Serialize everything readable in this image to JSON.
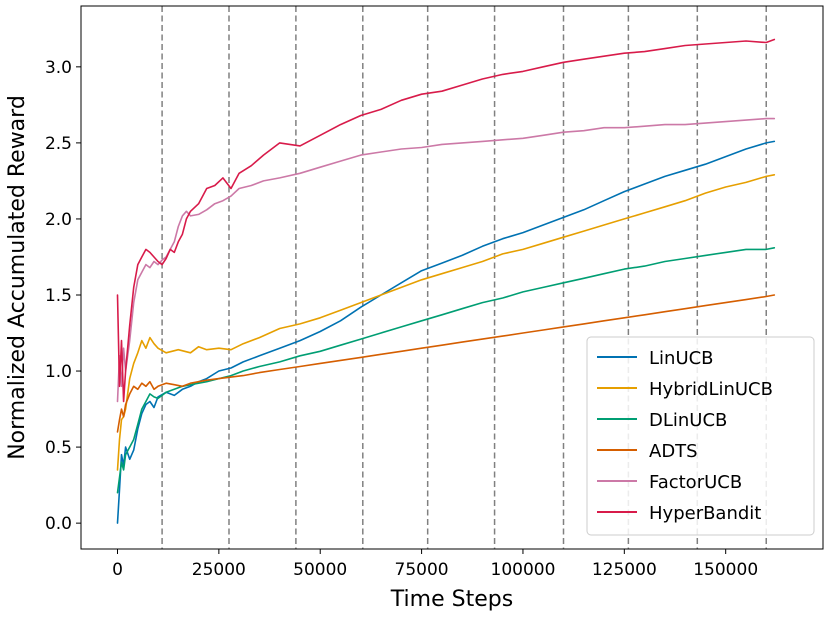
{
  "chart_data": {
    "type": "line",
    "title": "",
    "xlabel": "Time Steps",
    "ylabel": "Normalized Accumulated Reward",
    "xlim": [
      -9000,
      174000
    ],
    "ylim": [
      -0.17,
      3.4
    ],
    "xticks": [
      0,
      25000,
      50000,
      75000,
      100000,
      125000,
      150000
    ],
    "xtick_labels": [
      "0",
      "25000",
      "50000",
      "75000",
      "100000",
      "125000",
      "150000"
    ],
    "yticks": [
      0.0,
      0.5,
      1.0,
      1.5,
      2.0,
      2.5,
      3.0
    ],
    "ytick_labels": [
      "0.0",
      "0.5",
      "1.0",
      "1.5",
      "2.0",
      "2.5",
      "3.0"
    ],
    "vlines": [
      11000,
      27500,
      44000,
      60500,
      76500,
      93000,
      110000,
      126000,
      143000,
      160000
    ],
    "grid": false,
    "legend_position": "lower right",
    "series": [
      {
        "name": "LinUCB",
        "color": "#0072b2",
        "x": [
          0,
          500,
          1000,
          1500,
          2000,
          3000,
          4000,
          5000,
          6000,
          7000,
          8000,
          9000,
          10000,
          12000,
          14000,
          16000,
          18000,
          20000,
          22000,
          25000,
          28000,
          31000,
          35000,
          40000,
          45000,
          50000,
          55000,
          60000,
          65000,
          70000,
          75000,
          80000,
          85000,
          90000,
          95000,
          100000,
          105000,
          110000,
          115000,
          120000,
          125000,
          130000,
          135000,
          140000,
          145000,
          150000,
          155000,
          160000,
          162000
        ],
        "y": [
          0.0,
          0.22,
          0.45,
          0.38,
          0.5,
          0.42,
          0.48,
          0.62,
          0.72,
          0.78,
          0.8,
          0.76,
          0.83,
          0.86,
          0.84,
          0.88,
          0.9,
          0.93,
          0.95,
          1.0,
          1.02,
          1.06,
          1.1,
          1.15,
          1.2,
          1.26,
          1.33,
          1.42,
          1.5,
          1.58,
          1.66,
          1.71,
          1.76,
          1.82,
          1.87,
          1.91,
          1.96,
          2.01,
          2.06,
          2.12,
          2.18,
          2.23,
          2.28,
          2.32,
          2.36,
          2.41,
          2.46,
          2.5,
          2.51
        ]
      },
      {
        "name": "HybridLinUCB",
        "color": "#e69f00",
        "x": [
          0,
          500,
          1000,
          1500,
          2000,
          3000,
          4000,
          5000,
          6000,
          7000,
          8000,
          9000,
          10000,
          12000,
          15000,
          18000,
          20000,
          22000,
          25000,
          28000,
          31000,
          35000,
          40000,
          45000,
          50000,
          55000,
          60000,
          65000,
          70000,
          75000,
          80000,
          85000,
          90000,
          95000,
          100000,
          105000,
          110000,
          115000,
          120000,
          125000,
          130000,
          135000,
          140000,
          145000,
          150000,
          155000,
          160000,
          162000
        ],
        "y": [
          0.35,
          0.55,
          0.68,
          0.7,
          0.75,
          0.95,
          1.05,
          1.12,
          1.2,
          1.15,
          1.22,
          1.18,
          1.15,
          1.12,
          1.14,
          1.12,
          1.16,
          1.14,
          1.15,
          1.14,
          1.18,
          1.22,
          1.28,
          1.31,
          1.35,
          1.4,
          1.45,
          1.5,
          1.55,
          1.6,
          1.64,
          1.68,
          1.72,
          1.77,
          1.8,
          1.84,
          1.88,
          1.92,
          1.96,
          2.0,
          2.04,
          2.08,
          2.12,
          2.17,
          2.21,
          2.24,
          2.28,
          2.29
        ]
      },
      {
        "name": "DLinUCB",
        "color": "#009e73",
        "x": [
          0,
          500,
          1000,
          1500,
          2000,
          3000,
          4000,
          5000,
          6000,
          7000,
          8000,
          9000,
          10000,
          12000,
          14000,
          16000,
          18000,
          20000,
          22000,
          25000,
          28000,
          31000,
          35000,
          40000,
          45000,
          50000,
          55000,
          60000,
          65000,
          70000,
          75000,
          80000,
          85000,
          90000,
          95000,
          100000,
          105000,
          110000,
          115000,
          120000,
          125000,
          130000,
          135000,
          140000,
          145000,
          150000,
          155000,
          160000,
          162000
        ],
        "y": [
          0.2,
          0.3,
          0.4,
          0.35,
          0.45,
          0.5,
          0.55,
          0.65,
          0.75,
          0.8,
          0.85,
          0.83,
          0.82,
          0.86,
          0.88,
          0.9,
          0.91,
          0.92,
          0.93,
          0.95,
          0.97,
          1.0,
          1.03,
          1.06,
          1.1,
          1.13,
          1.17,
          1.21,
          1.25,
          1.29,
          1.33,
          1.37,
          1.41,
          1.45,
          1.48,
          1.52,
          1.55,
          1.58,
          1.61,
          1.64,
          1.67,
          1.69,
          1.72,
          1.74,
          1.76,
          1.78,
          1.8,
          1.8,
          1.81
        ]
      },
      {
        "name": "ADTS",
        "color": "#d55e00",
        "x": [
          0,
          500,
          1000,
          1500,
          2000,
          3000,
          4000,
          5000,
          6000,
          7000,
          8000,
          9000,
          10000,
          12000,
          14000,
          16000,
          18000,
          20000,
          22000,
          25000,
          28000,
          31000,
          35000,
          40000,
          45000,
          50000,
          55000,
          60000,
          65000,
          70000,
          75000,
          80000,
          85000,
          90000,
          95000,
          100000,
          105000,
          110000,
          115000,
          120000,
          125000,
          130000,
          135000,
          140000,
          145000,
          150000,
          155000,
          160000,
          162000
        ],
        "y": [
          0.6,
          0.68,
          0.75,
          0.7,
          0.78,
          0.85,
          0.9,
          0.88,
          0.92,
          0.9,
          0.93,
          0.88,
          0.9,
          0.92,
          0.91,
          0.9,
          0.92,
          0.93,
          0.94,
          0.95,
          0.96,
          0.97,
          0.99,
          1.01,
          1.03,
          1.05,
          1.07,
          1.09,
          1.11,
          1.13,
          1.15,
          1.17,
          1.19,
          1.21,
          1.23,
          1.25,
          1.27,
          1.29,
          1.31,
          1.33,
          1.35,
          1.37,
          1.39,
          1.41,
          1.43,
          1.45,
          1.47,
          1.49,
          1.5
        ]
      },
      {
        "name": "FactorUCB",
        "color": "#cc79a7",
        "x": [
          0,
          500,
          1000,
          1500,
          2000,
          3000,
          4000,
          5000,
          6000,
          7000,
          8000,
          9000,
          10000,
          11000,
          12000,
          13000,
          14000,
          15000,
          16000,
          17000,
          18000,
          20000,
          22000,
          24000,
          26000,
          28000,
          30000,
          33000,
          36000,
          40000,
          45000,
          50000,
          55000,
          60000,
          65000,
          70000,
          75000,
          80000,
          85000,
          90000,
          95000,
          100000,
          105000,
          110000,
          115000,
          120000,
          125000,
          130000,
          135000,
          140000,
          145000,
          150000,
          155000,
          160000,
          162000
        ],
        "y": [
          0.8,
          1.1,
          0.9,
          1.15,
          1.0,
          1.2,
          1.45,
          1.6,
          1.65,
          1.7,
          1.68,
          1.72,
          1.7,
          1.73,
          1.75,
          1.8,
          1.85,
          1.95,
          2.02,
          2.05,
          2.02,
          2.03,
          2.06,
          2.1,
          2.12,
          2.15,
          2.2,
          2.22,
          2.25,
          2.27,
          2.3,
          2.34,
          2.38,
          2.42,
          2.44,
          2.46,
          2.47,
          2.49,
          2.5,
          2.51,
          2.52,
          2.53,
          2.55,
          2.57,
          2.58,
          2.6,
          2.6,
          2.61,
          2.62,
          2.62,
          2.63,
          2.64,
          2.65,
          2.66,
          2.66
        ]
      },
      {
        "name": "HyperBandit",
        "color": "#d81b4a",
        "x": [
          0,
          500,
          1000,
          1500,
          2000,
          3000,
          4000,
          5000,
          6000,
          7000,
          8000,
          9000,
          10000,
          11000,
          12000,
          13000,
          14000,
          15000,
          16000,
          17000,
          18000,
          20000,
          22000,
          24000,
          26000,
          28000,
          30000,
          33000,
          36000,
          40000,
          45000,
          50000,
          55000,
          60000,
          65000,
          70000,
          75000,
          80000,
          85000,
          90000,
          95000,
          100000,
          105000,
          110000,
          115000,
          120000,
          125000,
          130000,
          135000,
          140000,
          145000,
          150000,
          155000,
          160000,
          162000
        ],
        "y": [
          1.5,
          0.9,
          1.2,
          0.8,
          1.0,
          1.3,
          1.55,
          1.7,
          1.75,
          1.8,
          1.78,
          1.75,
          1.72,
          1.7,
          1.74,
          1.8,
          1.78,
          1.85,
          1.9,
          2.0,
          2.05,
          2.1,
          2.2,
          2.22,
          2.27,
          2.2,
          2.3,
          2.35,
          2.42,
          2.5,
          2.48,
          2.55,
          2.62,
          2.68,
          2.72,
          2.78,
          2.82,
          2.84,
          2.88,
          2.92,
          2.95,
          2.97,
          3.0,
          3.03,
          3.05,
          3.07,
          3.09,
          3.1,
          3.12,
          3.14,
          3.15,
          3.16,
          3.17,
          3.16,
          3.18
        ]
      }
    ]
  }
}
